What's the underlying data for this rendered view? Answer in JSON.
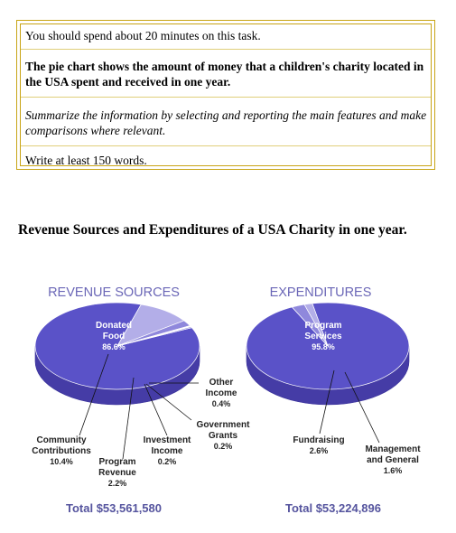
{
  "task": {
    "line1": "You should spend about 20 minutes on this task.",
    "line2": "The pie chart shows the amount of money that a children's charity located in the USA spent and received in one year.",
    "line3": "Summarize the information by selecting and reporting the main features and make comparisons where relevant.",
    "line4": "Write at least 150 words."
  },
  "heading": "Revenue Sources and Expenditures of a USA Charity in one year.",
  "colors": {
    "main": "#5a52c8",
    "mainSide": "#453ca6",
    "light": "#8f88dc",
    "lighter": "#b3aee8",
    "title": "#6b67b7",
    "total": "#55549e"
  },
  "chart_data": [
    {
      "type": "pie",
      "title": "REVENUE SOURCES",
      "total": "Total $53,561,580",
      "slices": [
        {
          "label": "Donated Food",
          "value": 86.6,
          "pct": "86.6%"
        },
        {
          "label": "Community Contributions",
          "value": 10.4,
          "pct": "10.4%"
        },
        {
          "label": "Program Revenue",
          "value": 2.2,
          "pct": "2.2%"
        },
        {
          "label": "Investment Income",
          "value": 0.2,
          "pct": "0.2%"
        },
        {
          "label": "Government Grants",
          "value": 0.2,
          "pct": "0.2%"
        },
        {
          "label": "Other Income",
          "value": 0.4,
          "pct": "0.4%"
        }
      ]
    },
    {
      "type": "pie",
      "title": "EXPENDITURES",
      "total": "Total $53,224,896",
      "slices": [
        {
          "label": "Program Services",
          "value": 95.8,
          "pct": "95.8%"
        },
        {
          "label": "Fundraising",
          "value": 2.6,
          "pct": "2.6%"
        },
        {
          "label": "Management and General",
          "value": 1.6,
          "pct": "1.6%"
        }
      ]
    }
  ]
}
